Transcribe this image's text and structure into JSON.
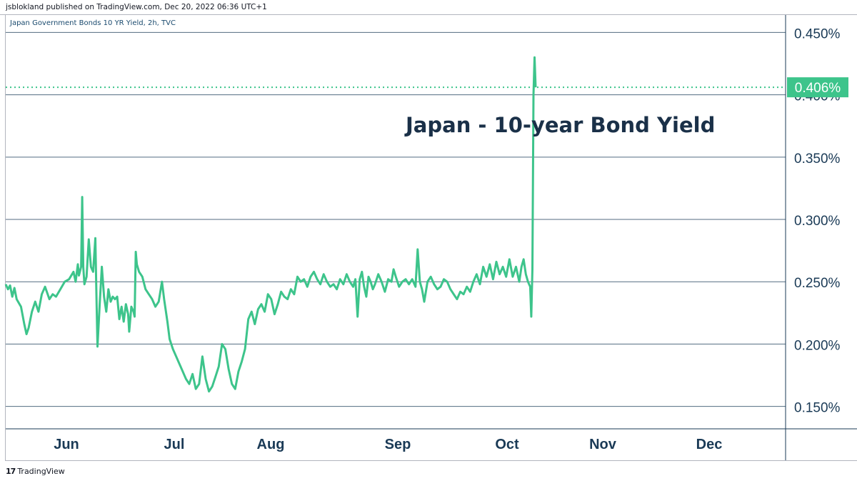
{
  "header": {
    "published_line": "jsblokland published on TradingView.com, Dec 20, 2022 06:36 UTC+1"
  },
  "symbol_info": "Japan Government Bonds 10 YR Yield, 2h, TVC",
  "footer": {
    "brand": "TradingView",
    "logo_mark": "17"
  },
  "colors": {
    "series": "#3dc48b",
    "last_price_bg": "#3dc48b",
    "axis_text": "#1a3a56",
    "grid": "#1a3a56"
  },
  "chart_data": {
    "type": "line",
    "title": "Japan - 10-year Bond Yield",
    "xlabel": "",
    "ylabel": "",
    "x_ticks": [
      "Jun",
      "Jul",
      "Aug",
      "Sep",
      "Oct",
      "Nov",
      "Dec"
    ],
    "y_ticks": [
      "0.150%",
      "0.200%",
      "0.250%",
      "0.300%",
      "0.350%",
      "0.400%",
      "0.450%"
    ],
    "ylim": [
      0.132,
      0.464
    ],
    "grid": "horizontal",
    "last_value_label": "0.406%",
    "last_value": 0.406,
    "series": [
      {
        "values": [
          [
            0.0,
            0.248
          ],
          [
            0.02,
            0.244
          ],
          [
            0.04,
            0.247
          ],
          [
            0.06,
            0.238
          ],
          [
            0.08,
            0.245
          ],
          [
            0.1,
            0.236
          ],
          [
            0.14,
            0.23
          ],
          [
            0.17,
            0.216
          ],
          [
            0.19,
            0.208
          ],
          [
            0.21,
            0.213
          ],
          [
            0.24,
            0.226
          ],
          [
            0.27,
            0.234
          ],
          [
            0.3,
            0.226
          ],
          [
            0.33,
            0.24
          ],
          [
            0.36,
            0.246
          ],
          [
            0.4,
            0.236
          ],
          [
            0.43,
            0.24
          ],
          [
            0.46,
            0.238
          ],
          [
            0.5,
            0.244
          ],
          [
            0.54,
            0.25
          ],
          [
            0.58,
            0.252
          ],
          [
            0.62,
            0.258
          ],
          [
            0.64,
            0.25
          ],
          [
            0.66,
            0.264
          ],
          [
            0.67,
            0.255
          ],
          [
            0.69,
            0.262
          ],
          [
            0.7,
            0.318
          ],
          [
            0.71,
            0.262
          ],
          [
            0.72,
            0.248
          ],
          [
            0.74,
            0.254
          ],
          [
            0.76,
            0.284
          ],
          [
            0.78,
            0.262
          ],
          [
            0.8,
            0.258
          ],
          [
            0.82,
            0.285
          ],
          [
            0.83,
            0.24
          ],
          [
            0.84,
            0.198
          ],
          [
            0.86,
            0.232
          ],
          [
            0.88,
            0.262
          ],
          [
            0.9,
            0.238
          ],
          [
            0.92,
            0.226
          ],
          [
            0.94,
            0.244
          ],
          [
            0.96,
            0.234
          ],
          [
            0.98,
            0.238
          ],
          [
            1.0,
            0.236
          ],
          [
            1.02,
            0.238
          ],
          [
            1.04,
            0.22
          ],
          [
            1.06,
            0.23
          ],
          [
            1.08,
            0.218
          ],
          [
            1.1,
            0.232
          ],
          [
            1.12,
            0.224
          ],
          [
            1.13,
            0.21
          ],
          [
            1.15,
            0.23
          ],
          [
            1.17,
            0.226
          ],
          [
            1.18,
            0.222
          ],
          [
            1.19,
            0.274
          ],
          [
            1.2,
            0.264
          ],
          [
            1.22,
            0.258
          ],
          [
            1.25,
            0.254
          ],
          [
            1.28,
            0.244
          ],
          [
            1.31,
            0.24
          ],
          [
            1.34,
            0.236
          ],
          [
            1.37,
            0.23
          ],
          [
            1.4,
            0.234
          ],
          [
            1.43,
            0.25
          ],
          [
            1.45,
            0.236
          ],
          [
            1.48,
            0.218
          ],
          [
            1.5,
            0.204
          ],
          [
            1.53,
            0.196
          ],
          [
            1.56,
            0.19
          ],
          [
            1.59,
            0.184
          ],
          [
            1.62,
            0.178
          ],
          [
            1.65,
            0.172
          ],
          [
            1.68,
            0.168
          ],
          [
            1.71,
            0.176
          ],
          [
            1.74,
            0.164
          ],
          [
            1.77,
            0.168
          ],
          [
            1.8,
            0.19
          ],
          [
            1.83,
            0.172
          ],
          [
            1.86,
            0.162
          ],
          [
            1.89,
            0.166
          ],
          [
            1.92,
            0.174
          ],
          [
            1.95,
            0.182
          ],
          [
            1.98,
            0.2
          ],
          [
            2.01,
            0.196
          ],
          [
            2.04,
            0.18
          ],
          [
            2.07,
            0.168
          ],
          [
            2.1,
            0.164
          ],
          [
            2.13,
            0.178
          ],
          [
            2.16,
            0.186
          ],
          [
            2.19,
            0.196
          ],
          [
            2.22,
            0.22
          ],
          [
            2.25,
            0.226
          ],
          [
            2.28,
            0.216
          ],
          [
            2.31,
            0.228
          ],
          [
            2.34,
            0.232
          ],
          [
            2.37,
            0.226
          ],
          [
            2.4,
            0.24
          ],
          [
            2.43,
            0.236
          ],
          [
            2.46,
            0.224
          ],
          [
            2.49,
            0.232
          ],
          [
            2.52,
            0.242
          ],
          [
            2.55,
            0.238
          ],
          [
            2.58,
            0.236
          ],
          [
            2.61,
            0.244
          ],
          [
            2.64,
            0.24
          ],
          [
            2.67,
            0.254
          ],
          [
            2.7,
            0.25
          ],
          [
            2.73,
            0.252
          ],
          [
            2.76,
            0.246
          ],
          [
            2.79,
            0.254
          ],
          [
            2.82,
            0.258
          ],
          [
            2.85,
            0.252
          ],
          [
            2.88,
            0.248
          ],
          [
            2.91,
            0.256
          ],
          [
            2.94,
            0.25
          ],
          [
            2.97,
            0.246
          ],
          [
            3.0,
            0.248
          ],
          [
            3.03,
            0.244
          ],
          [
            3.06,
            0.252
          ],
          [
            3.09,
            0.248
          ],
          [
            3.12,
            0.256
          ],
          [
            3.15,
            0.25
          ],
          [
            3.18,
            0.246
          ],
          [
            3.2,
            0.252
          ],
          [
            3.22,
            0.222
          ],
          [
            3.24,
            0.252
          ],
          [
            3.26,
            0.258
          ],
          [
            3.28,
            0.246
          ],
          [
            3.3,
            0.238
          ],
          [
            3.32,
            0.254
          ],
          [
            3.34,
            0.25
          ],
          [
            3.36,
            0.244
          ],
          [
            3.38,
            0.248
          ],
          [
            3.41,
            0.256
          ],
          [
            3.44,
            0.25
          ],
          [
            3.47,
            0.242
          ],
          [
            3.5,
            0.252
          ],
          [
            3.53,
            0.25
          ],
          [
            3.55,
            0.26
          ],
          [
            3.57,
            0.254
          ],
          [
            3.6,
            0.246
          ],
          [
            3.63,
            0.25
          ],
          [
            3.66,
            0.252
          ],
          [
            3.69,
            0.248
          ],
          [
            3.72,
            0.252
          ],
          [
            3.75,
            0.246
          ],
          [
            3.77,
            0.276
          ],
          [
            3.79,
            0.25
          ],
          [
            3.81,
            0.244
          ],
          [
            3.83,
            0.234
          ],
          [
            3.86,
            0.25
          ],
          [
            3.89,
            0.254
          ],
          [
            3.92,
            0.248
          ],
          [
            3.95,
            0.244
          ],
          [
            3.98,
            0.246
          ],
          [
            4.01,
            0.252
          ],
          [
            4.04,
            0.25
          ],
          [
            4.07,
            0.244
          ],
          [
            4.1,
            0.24
          ],
          [
            4.13,
            0.236
          ],
          [
            4.16,
            0.242
          ],
          [
            4.19,
            0.24
          ],
          [
            4.22,
            0.246
          ],
          [
            4.25,
            0.242
          ],
          [
            4.28,
            0.25
          ],
          [
            4.31,
            0.256
          ],
          [
            4.34,
            0.248
          ],
          [
            4.37,
            0.262
          ],
          [
            4.4,
            0.254
          ],
          [
            4.43,
            0.264
          ],
          [
            4.46,
            0.252
          ],
          [
            4.49,
            0.266
          ],
          [
            4.52,
            0.256
          ],
          [
            4.55,
            0.262
          ],
          [
            4.58,
            0.254
          ],
          [
            4.61,
            0.268
          ],
          [
            4.64,
            0.254
          ],
          [
            4.67,
            0.262
          ],
          [
            4.7,
            0.25
          ],
          [
            4.72,
            0.262
          ],
          [
            4.74,
            0.268
          ],
          [
            4.76,
            0.256
          ],
          [
            4.78,
            0.25
          ],
          [
            4.8,
            0.246
          ],
          [
            4.81,
            0.222
          ],
          [
            4.82,
            0.26
          ],
          [
            4.83,
            0.4
          ],
          [
            4.84,
            0.43
          ],
          [
            4.85,
            0.406
          ]
        ]
      }
    ]
  }
}
